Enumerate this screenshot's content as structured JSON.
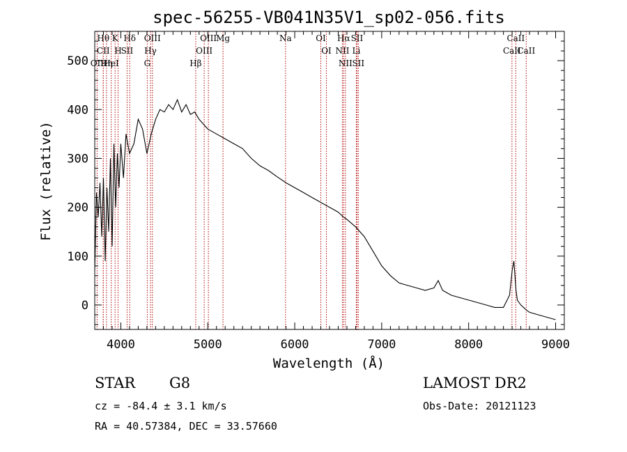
{
  "chart_data": {
    "type": "line",
    "title": "spec-56255-VB041N35V1_sp02-056.fits",
    "xlabel": "Wavelength (Å)",
    "ylabel": "Flux (relative)",
    "xlim": [
      3700,
      9100
    ],
    "ylim": [
      -50,
      560
    ],
    "xticks": [
      4000,
      5000,
      6000,
      7000,
      8000,
      9000
    ],
    "yticks": [
      0,
      100,
      200,
      300,
      400,
      500
    ],
    "grid": false,
    "series": [
      {
        "color": "#000000",
        "x": [
          3700,
          3720,
          3740,
          3760,
          3780,
          3800,
          3820,
          3840,
          3860,
          3880,
          3900,
          3920,
          3940,
          3960,
          3980,
          4000,
          4030,
          4060,
          4100,
          4150,
          4200,
          4250,
          4300,
          4350,
          4400,
          4450,
          4500,
          4550,
          4600,
          4650,
          4700,
          4750,
          4800,
          4850,
          4900,
          4950,
          5000,
          5100,
          5200,
          5300,
          5400,
          5500,
          5600,
          5700,
          5800,
          5900,
          6000,
          6100,
          6200,
          6300,
          6400,
          6500,
          6560,
          6600,
          6700,
          6800,
          6900,
          7000,
          7100,
          7200,
          7300,
          7400,
          7500,
          7600,
          7650,
          7700,
          7800,
          7900,
          8000,
          8100,
          8200,
          8300,
          8400,
          8470,
          8500,
          8520,
          8545,
          8560,
          8600,
          8662,
          8700,
          8800,
          8900,
          9000
        ],
        "y": [
          70,
          230,
          180,
          250,
          140,
          260,
          90,
          240,
          150,
          300,
          120,
          330,
          200,
          310,
          240,
          330,
          260,
          350,
          310,
          330,
          380,
          360,
          310,
          350,
          380,
          400,
          395,
          410,
          400,
          420,
          395,
          410,
          390,
          395,
          380,
          370,
          360,
          350,
          340,
          330,
          320,
          300,
          285,
          275,
          262,
          250,
          240,
          230,
          220,
          210,
          200,
          190,
          180,
          175,
          160,
          140,
          110,
          80,
          60,
          45,
          40,
          35,
          30,
          35,
          50,
          30,
          20,
          15,
          10,
          5,
          0,
          -5,
          -5,
          20,
          70,
          90,
          30,
          10,
          0,
          -10,
          -15,
          -20,
          -25,
          -30
        ]
      }
    ],
    "lines": [
      {
        "label": "Hθ",
        "x": 3798
      },
      {
        "label": "CII",
        "x": 3798
      },
      {
        "label": "OII",
        "x": 3727
      },
      {
        "label": "Hη",
        "x": 3835
      },
      {
        "label": "K",
        "x": 3934
      },
      {
        "label": "HeI",
        "x": 3889
      },
      {
        "label": "H",
        "x": 3968
      },
      {
        "label": "Hδ",
        "x": 4102
      },
      {
        "label": "SII",
        "x": 4072
      },
      {
        "label": "OIII",
        "x": 4363
      },
      {
        "label": "Hγ",
        "x": 4341
      },
      {
        "label": "G",
        "x": 4304
      },
      {
        "label": "OIII",
        "x": 5007
      },
      {
        "label": "OIII",
        "x": 4959
      },
      {
        "label": "Hβ",
        "x": 4861
      },
      {
        "label": "Mg",
        "x": 5175
      },
      {
        "label": "Na",
        "x": 5894
      },
      {
        "label": "OI",
        "x": 6300
      },
      {
        "label": "OI",
        "x": 6364
      },
      {
        "label": "Hα",
        "x": 6563
      },
      {
        "label": "SII",
        "x": 6716
      },
      {
        "label": "NII",
        "x": 6548
      },
      {
        "label": "Li",
        "x": 6708
      },
      {
        "label": "NII",
        "x": 6583
      },
      {
        "label": "SII",
        "x": 6731
      },
      {
        "label": "CaII",
        "x": 8542
      },
      {
        "label": "CaII",
        "x": 8498
      },
      {
        "label": "CaII",
        "x": 8662
      }
    ]
  },
  "info": {
    "object_type": "STAR",
    "subclass": "G8",
    "survey": "LAMOST DR2",
    "cz": "cz = -84.4 ± 3.1 km/s",
    "obs_date": "Obs-Date: 20121123",
    "coords": "RA =  40.57384, DEC =  33.57660"
  }
}
